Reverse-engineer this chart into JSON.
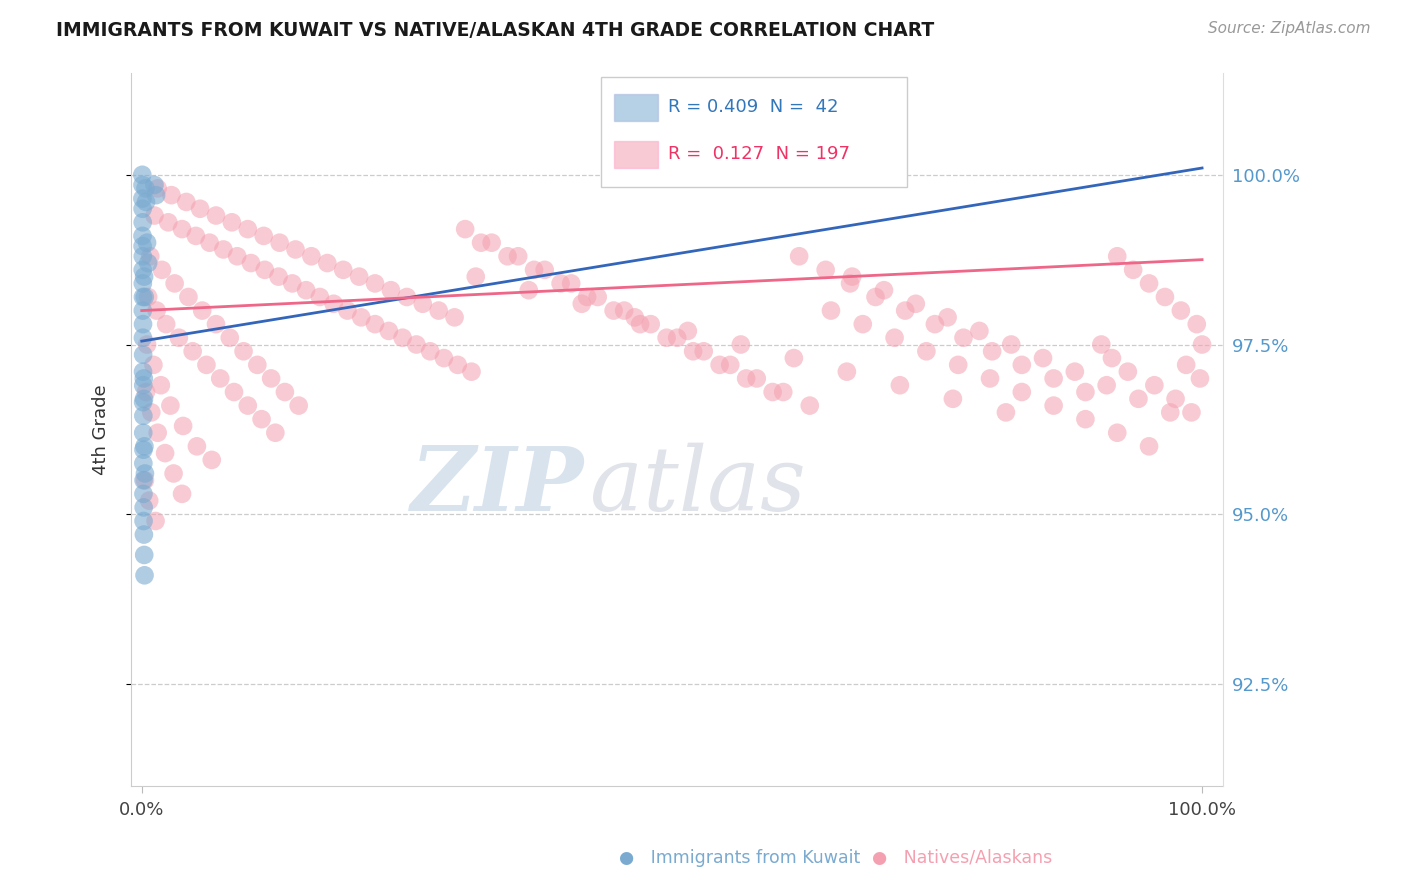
{
  "title": "IMMIGRANTS FROM KUWAIT VS NATIVE/ALASKAN 4TH GRADE CORRELATION CHART",
  "source": "Source: ZipAtlas.com",
  "ylabel": "4th Grade",
  "y_ticks": [
    92.5,
    95.0,
    97.5,
    100.0
  ],
  "y_tick_labels": [
    "92.5%",
    "95.0%",
    "97.5%",
    "100.0%"
  ],
  "ylim": [
    91.0,
    101.5
  ],
  "xlim": [
    -1.0,
    102.0
  ],
  "legend_blue_r": "0.409",
  "legend_blue_n": "42",
  "legend_pink_r": "0.127",
  "legend_pink_n": "197",
  "blue_color": "#7AAAD0",
  "pink_color": "#F4A0B0",
  "blue_line_color": "#3366BB",
  "pink_line_color": "#EE6688",
  "watermark_zip": "ZIP",
  "watermark_atlas": "atlas",
  "blue_trendline": [
    0.0,
    97.55,
    100.0,
    100.1
  ],
  "pink_trendline": [
    0.0,
    98.0,
    100.0,
    98.75
  ],
  "blue_scatter": [
    [
      0.05,
      100.0
    ],
    [
      0.07,
      99.85
    ],
    [
      0.06,
      99.65
    ],
    [
      0.08,
      99.5
    ],
    [
      0.09,
      99.3
    ],
    [
      0.07,
      99.1
    ],
    [
      0.08,
      98.95
    ],
    [
      0.1,
      98.8
    ],
    [
      0.09,
      98.6
    ],
    [
      0.1,
      98.4
    ],
    [
      0.11,
      98.2
    ],
    [
      0.1,
      98.0
    ],
    [
      0.12,
      97.8
    ],
    [
      0.11,
      97.6
    ],
    [
      0.13,
      97.35
    ],
    [
      0.12,
      97.1
    ],
    [
      0.14,
      96.9
    ],
    [
      0.13,
      96.65
    ],
    [
      0.15,
      96.45
    ],
    [
      0.14,
      96.2
    ],
    [
      0.16,
      95.95
    ],
    [
      0.15,
      95.75
    ],
    [
      0.17,
      95.5
    ],
    [
      0.16,
      95.3
    ],
    [
      0.18,
      95.1
    ],
    [
      0.17,
      94.9
    ],
    [
      0.35,
      99.8
    ],
    [
      0.4,
      99.6
    ],
    [
      1.2,
      99.85
    ],
    [
      1.35,
      99.7
    ],
    [
      0.22,
      98.5
    ],
    [
      0.28,
      98.2
    ],
    [
      0.5,
      99.0
    ],
    [
      0.6,
      98.7
    ],
    [
      0.19,
      97.0
    ],
    [
      0.21,
      96.7
    ],
    [
      0.25,
      96.0
    ],
    [
      0.3,
      95.6
    ],
    [
      0.2,
      94.7
    ],
    [
      0.23,
      94.4
    ],
    [
      0.26,
      94.1
    ]
  ],
  "pink_scatter": [
    [
      1.5,
      99.8
    ],
    [
      2.8,
      99.7
    ],
    [
      4.2,
      99.6
    ],
    [
      5.5,
      99.5
    ],
    [
      7.0,
      99.4
    ],
    [
      8.5,
      99.3
    ],
    [
      10.0,
      99.2
    ],
    [
      11.5,
      99.1
    ],
    [
      13.0,
      99.0
    ],
    [
      14.5,
      98.9
    ],
    [
      16.0,
      98.8
    ],
    [
      17.5,
      98.7
    ],
    [
      19.0,
      98.6
    ],
    [
      20.5,
      98.5
    ],
    [
      22.0,
      98.4
    ],
    [
      23.5,
      98.3
    ],
    [
      25.0,
      98.2
    ],
    [
      26.5,
      98.1
    ],
    [
      28.0,
      98.0
    ],
    [
      29.5,
      97.9
    ],
    [
      1.2,
      99.4
    ],
    [
      2.5,
      99.3
    ],
    [
      3.8,
      99.2
    ],
    [
      5.1,
      99.1
    ],
    [
      6.4,
      99.0
    ],
    [
      7.7,
      98.9
    ],
    [
      9.0,
      98.8
    ],
    [
      10.3,
      98.7
    ],
    [
      11.6,
      98.6
    ],
    [
      12.9,
      98.5
    ],
    [
      14.2,
      98.4
    ],
    [
      15.5,
      98.3
    ],
    [
      16.8,
      98.2
    ],
    [
      18.1,
      98.1
    ],
    [
      19.4,
      98.0
    ],
    [
      20.7,
      97.9
    ],
    [
      22.0,
      97.8
    ],
    [
      23.3,
      97.7
    ],
    [
      24.6,
      97.6
    ],
    [
      25.9,
      97.5
    ],
    [
      27.2,
      97.4
    ],
    [
      28.5,
      97.3
    ],
    [
      29.8,
      97.2
    ],
    [
      31.1,
      97.1
    ],
    [
      0.8,
      98.8
    ],
    [
      1.9,
      98.6
    ],
    [
      3.1,
      98.4
    ],
    [
      4.4,
      98.2
    ],
    [
      5.7,
      98.0
    ],
    [
      7.0,
      97.8
    ],
    [
      8.3,
      97.6
    ],
    [
      9.6,
      97.4
    ],
    [
      10.9,
      97.2
    ],
    [
      12.2,
      97.0
    ],
    [
      13.5,
      96.8
    ],
    [
      14.8,
      96.6
    ],
    [
      0.6,
      98.2
    ],
    [
      1.4,
      98.0
    ],
    [
      2.3,
      97.8
    ],
    [
      3.5,
      97.6
    ],
    [
      4.8,
      97.4
    ],
    [
      6.1,
      97.2
    ],
    [
      7.4,
      97.0
    ],
    [
      8.7,
      96.8
    ],
    [
      10.0,
      96.6
    ],
    [
      11.3,
      96.4
    ],
    [
      12.6,
      96.2
    ],
    [
      0.5,
      97.5
    ],
    [
      1.1,
      97.2
    ],
    [
      1.8,
      96.9
    ],
    [
      2.7,
      96.6
    ],
    [
      3.9,
      96.3
    ],
    [
      5.2,
      96.0
    ],
    [
      6.6,
      95.8
    ],
    [
      0.4,
      96.8
    ],
    [
      0.9,
      96.5
    ],
    [
      1.5,
      96.2
    ],
    [
      2.2,
      95.9
    ],
    [
      3.0,
      95.6
    ],
    [
      3.8,
      95.3
    ],
    [
      0.3,
      95.5
    ],
    [
      0.7,
      95.2
    ],
    [
      1.3,
      94.9
    ],
    [
      32.0,
      99.0
    ],
    [
      34.5,
      98.8
    ],
    [
      37.0,
      98.6
    ],
    [
      39.5,
      98.4
    ],
    [
      42.0,
      98.2
    ],
    [
      44.5,
      98.0
    ],
    [
      47.0,
      97.8
    ],
    [
      49.5,
      97.6
    ],
    [
      52.0,
      97.4
    ],
    [
      54.5,
      97.2
    ],
    [
      57.0,
      97.0
    ],
    [
      59.5,
      96.8
    ],
    [
      30.5,
      99.2
    ],
    [
      33.0,
      99.0
    ],
    [
      35.5,
      98.8
    ],
    [
      38.0,
      98.6
    ],
    [
      40.5,
      98.4
    ],
    [
      43.0,
      98.2
    ],
    [
      45.5,
      98.0
    ],
    [
      48.0,
      97.8
    ],
    [
      50.5,
      97.6
    ],
    [
      53.0,
      97.4
    ],
    [
      55.5,
      97.2
    ],
    [
      58.0,
      97.0
    ],
    [
      60.5,
      96.8
    ],
    [
      63.0,
      96.6
    ],
    [
      31.5,
      98.5
    ],
    [
      36.5,
      98.3
    ],
    [
      41.5,
      98.1
    ],
    [
      46.5,
      97.9
    ],
    [
      51.5,
      97.7
    ],
    [
      56.5,
      97.5
    ],
    [
      61.5,
      97.3
    ],
    [
      66.5,
      97.1
    ],
    [
      71.5,
      96.9
    ],
    [
      76.5,
      96.7
    ],
    [
      81.5,
      96.5
    ],
    [
      65.0,
      98.0
    ],
    [
      68.0,
      97.8
    ],
    [
      71.0,
      97.6
    ],
    [
      74.0,
      97.4
    ],
    [
      77.0,
      97.2
    ],
    [
      80.0,
      97.0
    ],
    [
      83.0,
      96.8
    ],
    [
      86.0,
      96.6
    ],
    [
      89.0,
      96.4
    ],
    [
      92.0,
      96.2
    ],
    [
      95.0,
      96.0
    ],
    [
      67.0,
      98.5
    ],
    [
      70.0,
      98.3
    ],
    [
      73.0,
      98.1
    ],
    [
      76.0,
      97.9
    ],
    [
      79.0,
      97.7
    ],
    [
      82.0,
      97.5
    ],
    [
      85.0,
      97.3
    ],
    [
      88.0,
      97.1
    ],
    [
      91.0,
      96.9
    ],
    [
      94.0,
      96.7
    ],
    [
      97.0,
      96.5
    ],
    [
      62.0,
      98.8
    ],
    [
      64.5,
      98.6
    ],
    [
      66.8,
      98.4
    ],
    [
      69.2,
      98.2
    ],
    [
      72.0,
      98.0
    ],
    [
      74.8,
      97.8
    ],
    [
      77.5,
      97.6
    ],
    [
      80.2,
      97.4
    ],
    [
      83.0,
      97.2
    ],
    [
      86.0,
      97.0
    ],
    [
      89.0,
      96.8
    ],
    [
      92.0,
      98.8
    ],
    [
      93.5,
      98.6
    ],
    [
      95.0,
      98.4
    ],
    [
      96.5,
      98.2
    ],
    [
      98.0,
      98.0
    ],
    [
      99.5,
      97.8
    ],
    [
      100.0,
      97.5
    ],
    [
      90.5,
      97.5
    ],
    [
      91.5,
      97.3
    ],
    [
      93.0,
      97.1
    ],
    [
      95.5,
      96.9
    ],
    [
      97.5,
      96.7
    ],
    [
      99.0,
      96.5
    ],
    [
      98.5,
      97.2
    ],
    [
      99.8,
      97.0
    ]
  ]
}
